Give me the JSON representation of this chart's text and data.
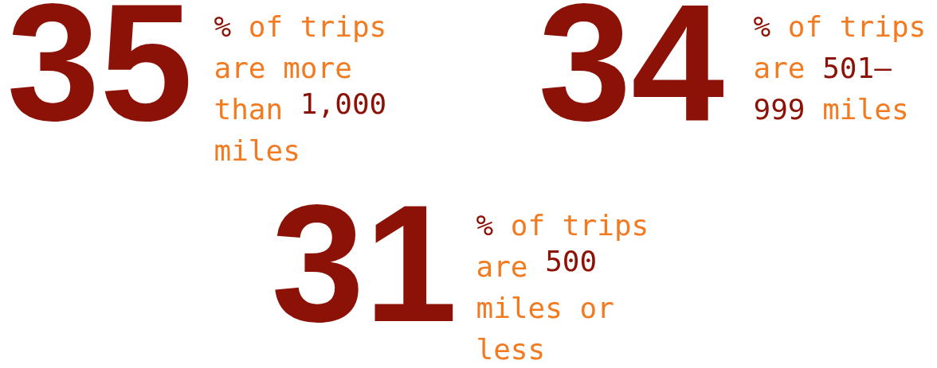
{
  "chart_data": {
    "type": "other",
    "categories": [
      "% of trips are more than 1,000 miles",
      "% of trips are 501–999 miles",
      "% of trips are 500 miles or less"
    ],
    "series": [
      {
        "color": "#8c1208",
        "values": [
          35,
          34,
          31
        ]
      }
    ],
    "colors": [
      "#f27a21",
      "#f27a21",
      "#f27a21"
    ],
    "data_labels": true
  }
}
